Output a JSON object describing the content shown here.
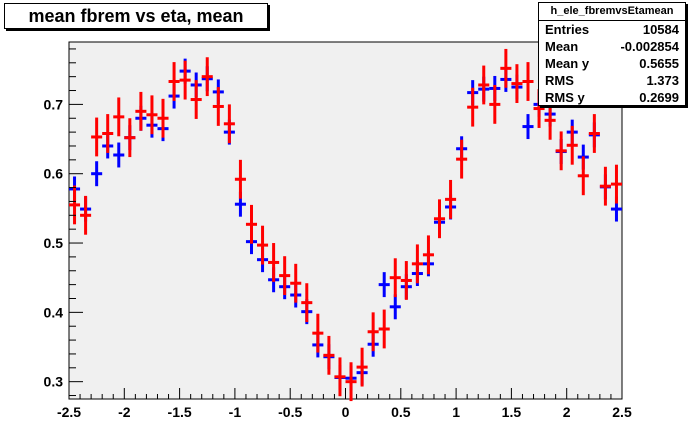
{
  "title": "mean fbrem vs eta, mean",
  "stats": {
    "name": "h_ele_fbremvsEtamean",
    "rows": [
      {
        "label": "Entries",
        "value": "10584"
      },
      {
        "label": "Mean",
        "value": "-0.002854"
      },
      {
        "label": "Mean y",
        "value": "0.5655"
      },
      {
        "label": "RMS",
        "value": "1.373"
      },
      {
        "label": "RMS y",
        "value": "0.2699"
      }
    ]
  },
  "chart_data": {
    "type": "scatter",
    "xlim": [
      -2.5,
      2.5
    ],
    "ylim": [
      0.275,
      0.79
    ],
    "x_ticks": [
      -2.5,
      -2,
      -1.5,
      -1,
      -0.5,
      0,
      0.5,
      1,
      1.5,
      2,
      2.5
    ],
    "x_tick_labels": [
      "-2.5",
      "-2",
      "-1.5",
      "-1",
      "-0.5",
      "0",
      "0.5",
      "1",
      "1.5",
      "2",
      "2.5"
    ],
    "y_ticks": [
      0.3,
      0.4,
      0.5,
      0.6,
      0.7
    ],
    "y_tick_labels": [
      "0.3",
      "0.4",
      "0.5",
      "0.6",
      "0.7"
    ],
    "grid": false,
    "legend": "top-right",
    "series": [
      {
        "color": "#0000ff",
        "x": [
          -2.45,
          -2.35,
          -2.25,
          -2.15,
          -2.05,
          -1.95,
          -1.85,
          -1.75,
          -1.65,
          -1.55,
          -1.45,
          -1.35,
          -1.25,
          -1.15,
          -1.05,
          -0.95,
          -0.85,
          -0.75,
          -0.65,
          -0.55,
          -0.45,
          -0.35,
          -0.25,
          -0.15,
          -0.05,
          0.05,
          0.15,
          0.25,
          0.35,
          0.45,
          0.55,
          0.65,
          0.75,
          0.85,
          0.95,
          1.05,
          1.15,
          1.25,
          1.35,
          1.45,
          1.55,
          1.65,
          1.75,
          1.85,
          1.95,
          2.05,
          2.15,
          2.25,
          2.35,
          2.45
        ],
        "y": [
          0.578,
          0.549,
          0.6,
          0.64,
          0.627,
          0.652,
          0.68,
          0.67,
          0.665,
          0.712,
          0.748,
          0.728,
          0.737,
          0.718,
          0.66,
          0.556,
          0.502,
          0.476,
          0.447,
          0.437,
          0.425,
          0.401,
          0.353,
          0.336,
          0.306,
          0.305,
          0.313,
          0.354,
          0.44,
          0.408,
          0.437,
          0.456,
          0.47,
          0.53,
          0.552,
          0.636,
          0.717,
          0.722,
          0.723,
          0.736,
          0.725,
          0.668,
          0.7,
          0.686,
          0.632,
          0.66,
          0.624,
          0.656,
          0.581,
          0.549
        ],
        "yerr": 0.018
      },
      {
        "color": "#ff0000",
        "x": [
          -2.45,
          -2.35,
          -2.25,
          -2.15,
          -2.05,
          -1.95,
          -1.85,
          -1.75,
          -1.65,
          -1.55,
          -1.45,
          -1.35,
          -1.25,
          -1.15,
          -1.05,
          -0.95,
          -0.85,
          -0.75,
          -0.65,
          -0.55,
          -0.45,
          -0.35,
          -0.25,
          -0.15,
          -0.05,
          0.05,
          0.15,
          0.25,
          0.35,
          0.45,
          0.55,
          0.65,
          0.75,
          0.85,
          0.95,
          1.05,
          1.15,
          1.25,
          1.35,
          1.45,
          1.55,
          1.65,
          1.75,
          1.85,
          1.95,
          2.05,
          2.15,
          2.25,
          2.35,
          2.45
        ],
        "y": [
          0.555,
          0.54,
          0.653,
          0.658,
          0.682,
          0.652,
          0.69,
          0.685,
          0.68,
          0.733,
          0.735,
          0.707,
          0.74,
          0.697,
          0.672,
          0.592,
          0.527,
          0.497,
          0.472,
          0.453,
          0.442,
          0.414,
          0.37,
          0.338,
          0.307,
          0.3,
          0.321,
          0.372,
          0.376,
          0.45,
          0.446,
          0.47,
          0.483,
          0.535,
          0.563,
          0.621,
          0.696,
          0.728,
          0.7,
          0.752,
          0.73,
          0.733,
          0.694,
          0.677,
          0.633,
          0.641,
          0.597,
          0.658,
          0.582,
          0.585
        ],
        "yerr": 0.028
      }
    ]
  }
}
